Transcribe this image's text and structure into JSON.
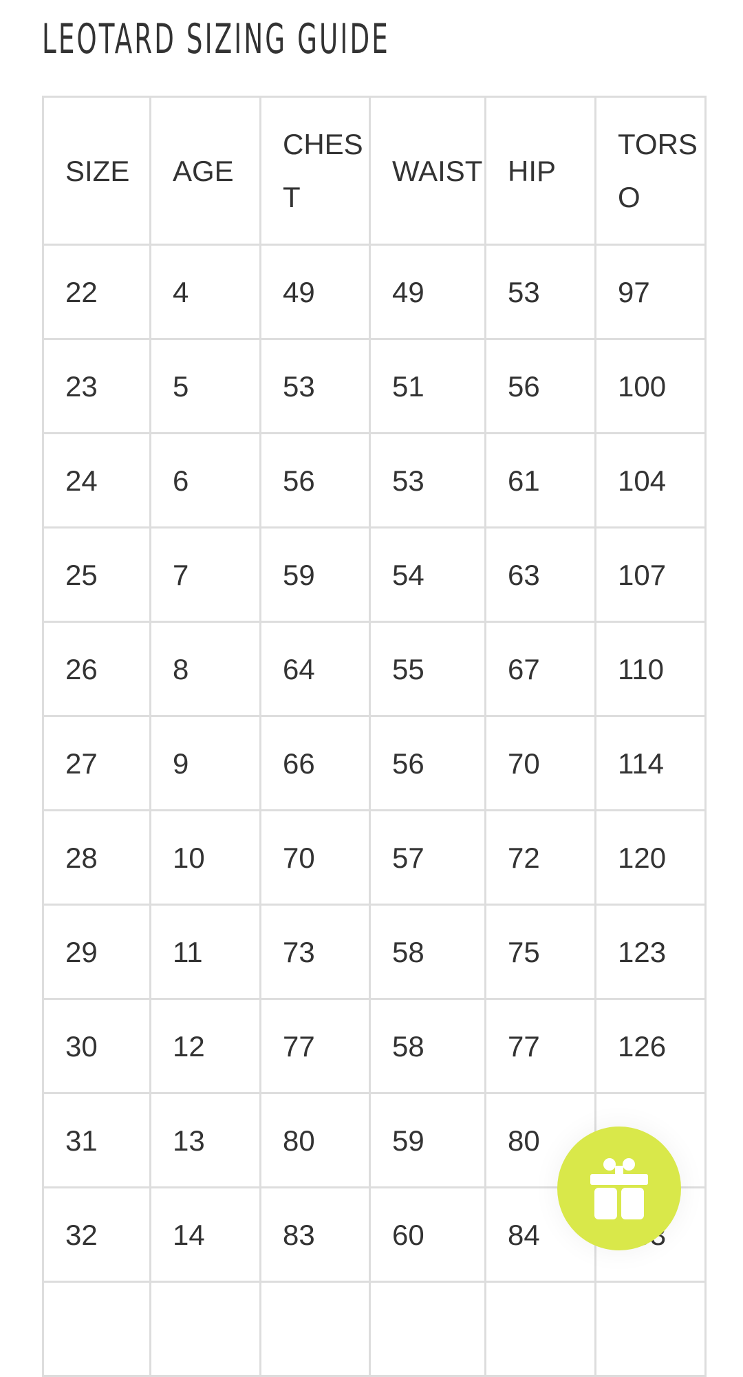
{
  "title": "LEOTARD SIZING GUIDE",
  "table": {
    "headers": [
      "SIZE",
      "AGE",
      "CHEST",
      "WAIST",
      "HIP",
      "TORSO"
    ],
    "rows": [
      [
        "22",
        "4",
        "49",
        "49",
        "53",
        "97"
      ],
      [
        "23",
        "5",
        "53",
        "51",
        "56",
        "100"
      ],
      [
        "24",
        "6",
        "56",
        "53",
        "61",
        "104"
      ],
      [
        "25",
        "7",
        "59",
        "54",
        "63",
        "107"
      ],
      [
        "26",
        "8",
        "64",
        "55",
        "67",
        "110"
      ],
      [
        "27",
        "9",
        "66",
        "56",
        "70",
        "114"
      ],
      [
        "28",
        "10",
        "70",
        "57",
        "72",
        "120"
      ],
      [
        "29",
        "11",
        "73",
        "58",
        "75",
        "123"
      ],
      [
        "30",
        "12",
        "77",
        "58",
        "77",
        "126"
      ],
      [
        "31",
        "13",
        "80",
        "59",
        "80",
        ""
      ],
      [
        "32",
        "14",
        "83",
        "60",
        "84",
        "133"
      ],
      [
        "",
        "",
        "",
        "",
        "",
        ""
      ]
    ]
  },
  "gift_button": {
    "icon": "gift-icon",
    "color": "#d9e84a"
  }
}
